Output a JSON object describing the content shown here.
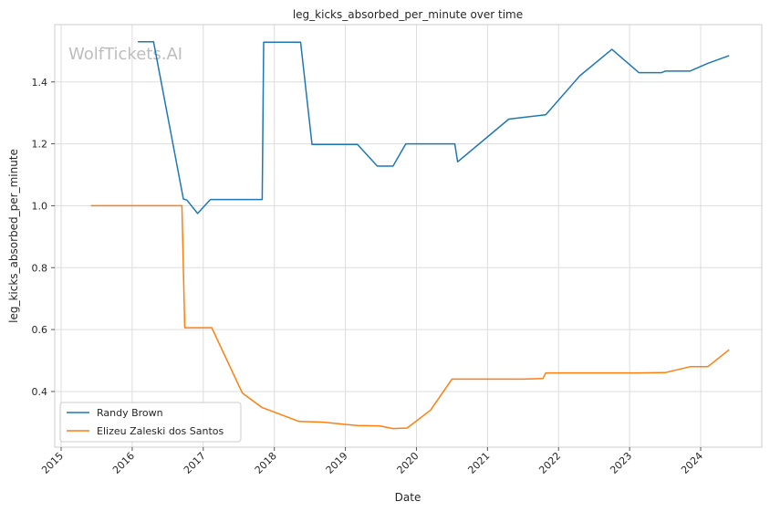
{
  "chart_data": {
    "type": "line",
    "title": "leg_kicks_absorbed_per_minute over time",
    "xlabel": "Date",
    "ylabel": "leg_kicks_absorbed_per_minute",
    "watermark": "WolfTickets.AI",
    "xlim": [
      2014.91,
      2024.86
    ],
    "ylim": [
      0.22,
      1.585
    ],
    "x_ticks": [
      2015,
      2016,
      2017,
      2018,
      2019,
      2020,
      2021,
      2022,
      2023,
      2024
    ],
    "y_ticks": [
      0.4,
      0.6,
      0.8,
      1.0,
      1.2,
      1.4
    ],
    "y_tick_labels": [
      "0.4",
      "0.6",
      "0.8",
      "1.0",
      "1.2",
      "1.4"
    ],
    "grid": true,
    "legend_position": "lower-left",
    "series": [
      {
        "name": "Randy Brown",
        "color": "#1f77b4",
        "x": [
          2016.08,
          2016.3,
          2016.72,
          2016.77,
          2016.92,
          2017.1,
          2017.83,
          2017.85,
          2018.37,
          2018.53,
          2019.17,
          2019.45,
          2019.67,
          2019.85,
          2020.54,
          2020.58,
          2021.3,
          2021.82,
          2022.3,
          2022.75,
          2023.13,
          2023.45,
          2023.5,
          2023.85,
          2024.1,
          2024.4
        ],
        "y": [
          1.53,
          1.53,
          1.022,
          1.018,
          0.975,
          1.02,
          1.02,
          1.528,
          1.528,
          1.198,
          1.198,
          1.128,
          1.128,
          1.2,
          1.2,
          1.142,
          1.28,
          1.294,
          1.42,
          1.505,
          1.43,
          1.43,
          1.435,
          1.435,
          1.46,
          1.485
        ]
      },
      {
        "name": "Elizeu Zaleski dos Santos",
        "color": "#ff7f0e",
        "x": [
          2015.42,
          2016.7,
          2016.74,
          2017.12,
          2017.55,
          2017.83,
          2018.35,
          2018.68,
          2019.17,
          2019.48,
          2019.67,
          2019.87,
          2020.2,
          2020.5,
          2021.5,
          2021.78,
          2021.82,
          2023.1,
          2023.5,
          2023.85,
          2024.1,
          2024.4
        ],
        "y": [
          1.0,
          1.0,
          0.606,
          0.606,
          0.395,
          0.348,
          0.303,
          0.301,
          0.29,
          0.289,
          0.28,
          0.282,
          0.34,
          0.44,
          0.44,
          0.442,
          0.46,
          0.46,
          0.461,
          0.48,
          0.48,
          0.535
        ]
      }
    ]
  }
}
